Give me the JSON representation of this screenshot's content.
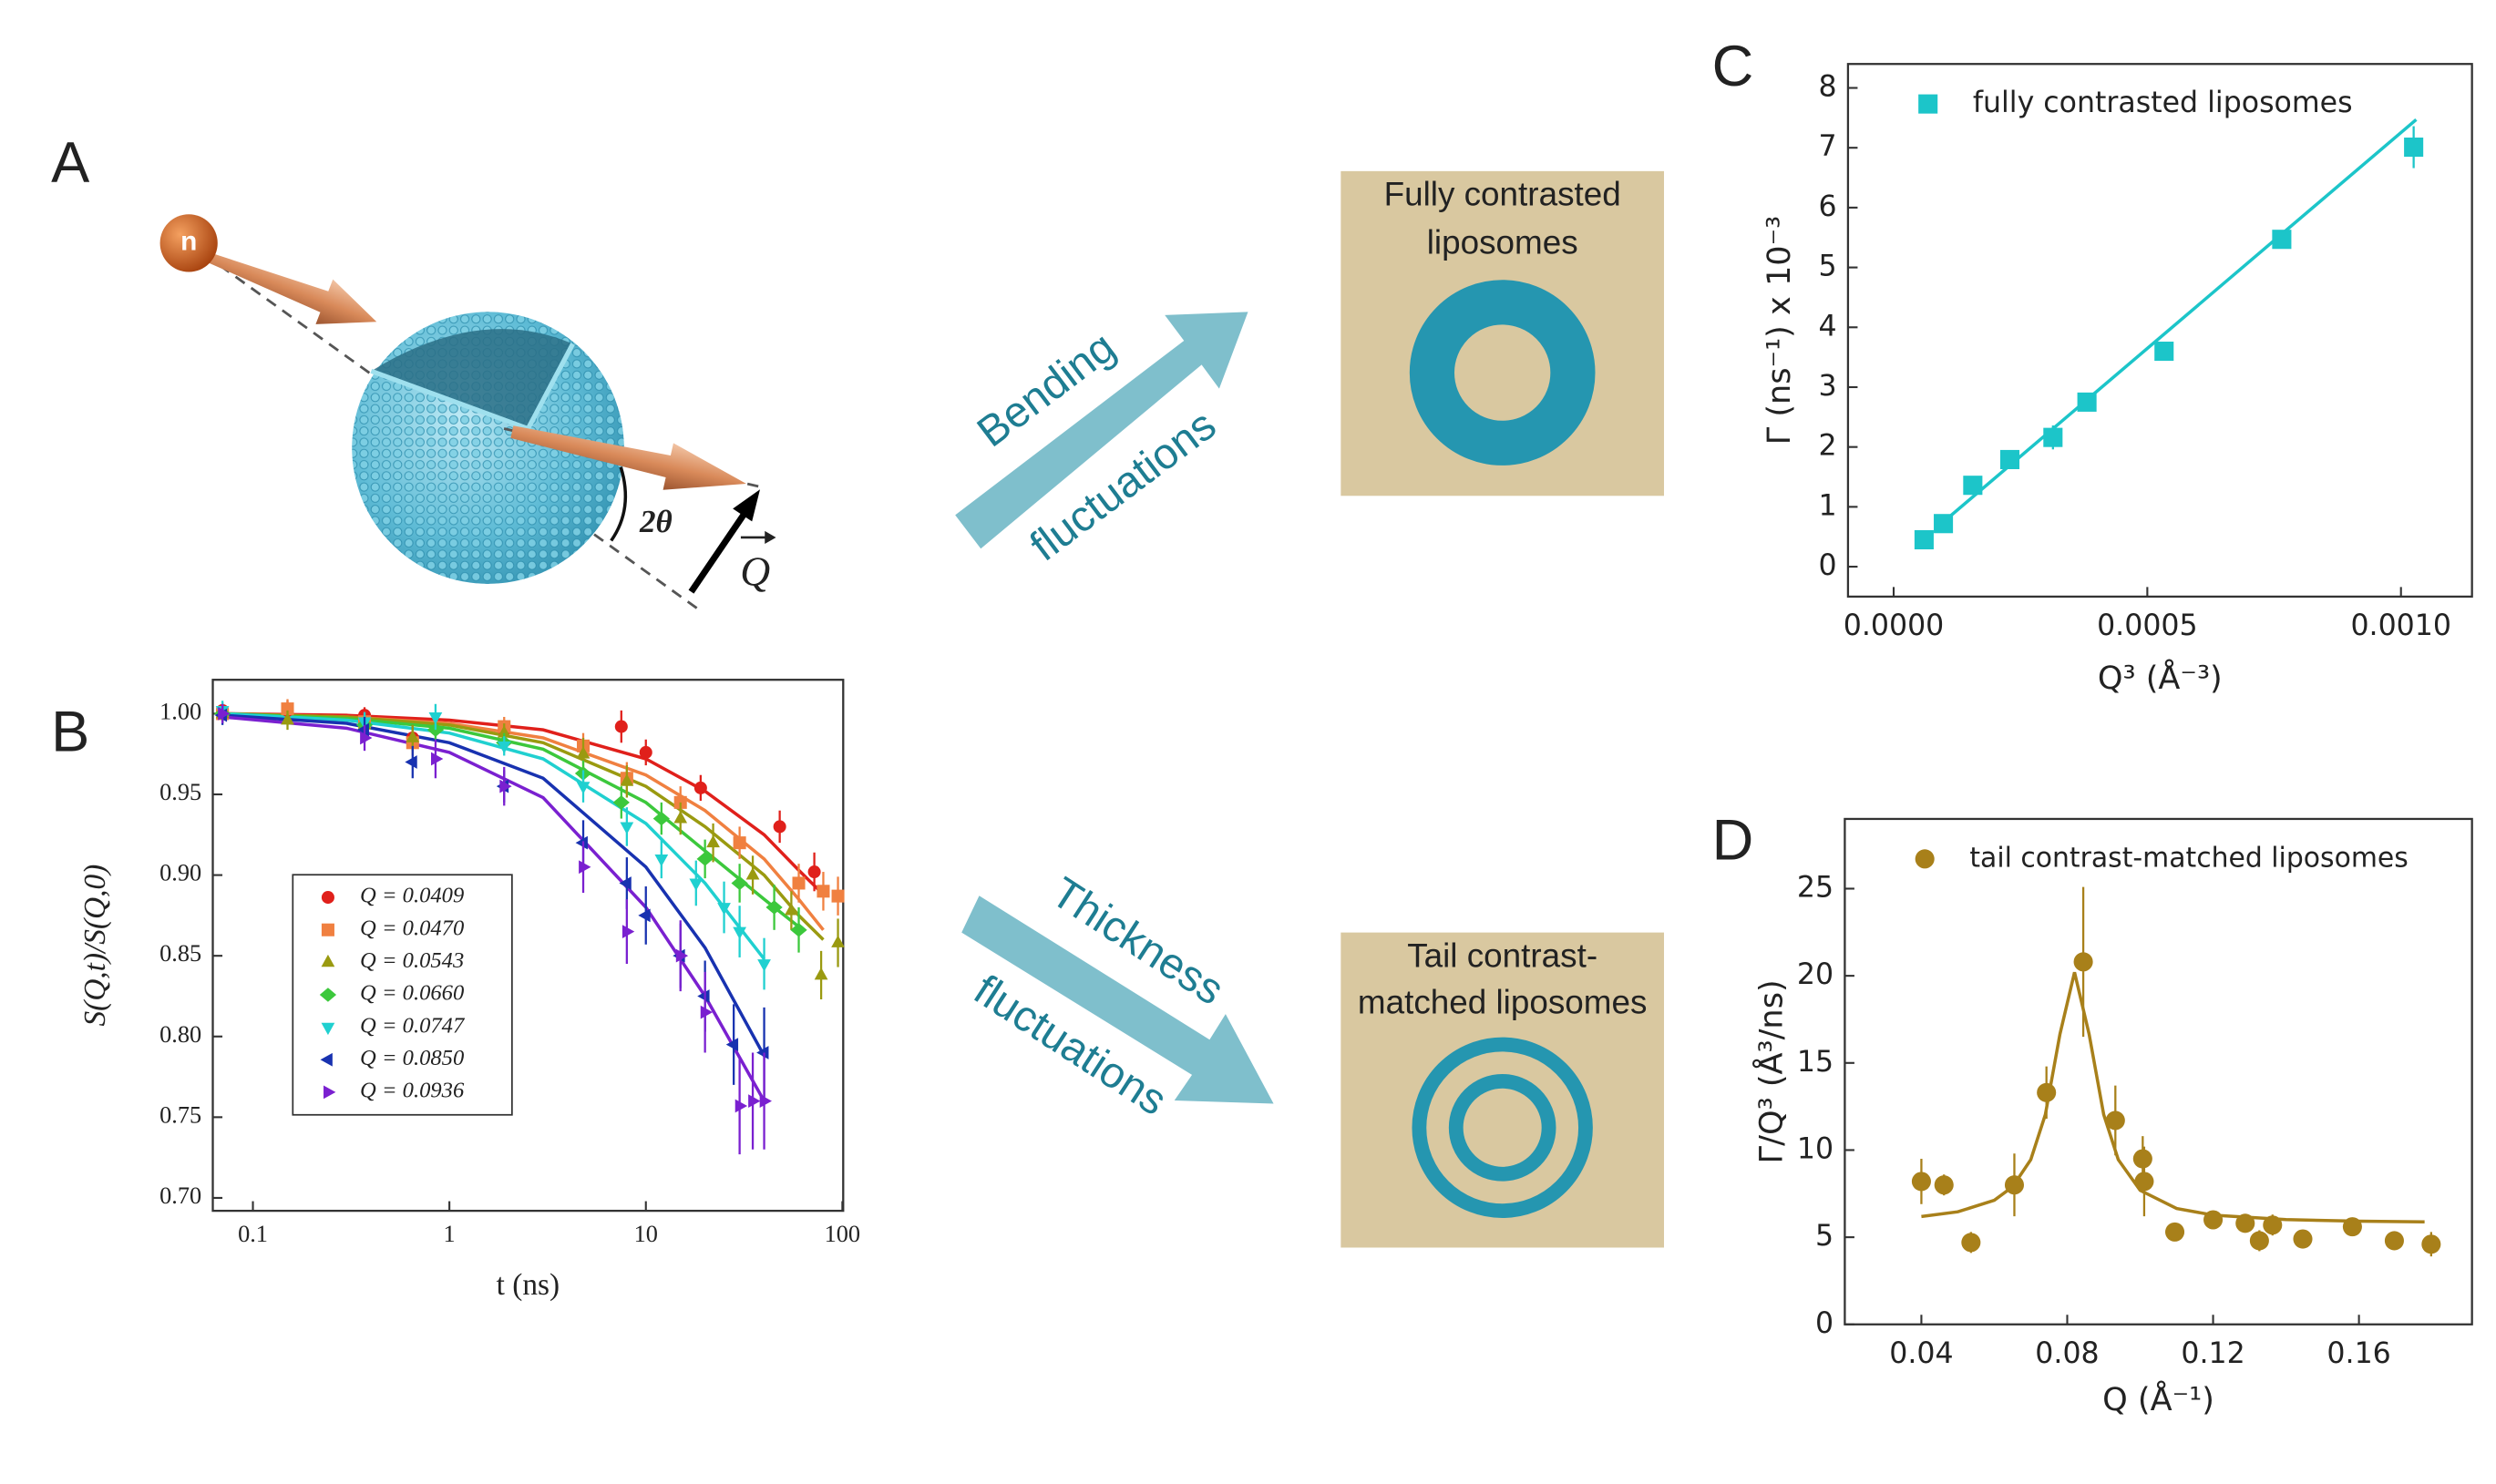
{
  "diagram": {
    "panel_labels": [
      "A",
      "B",
      "C",
      "D"
    ],
    "neutron": "n",
    "angle": "2θ",
    "vector": "Q",
    "arrows": [
      {
        "lines": [
          "Bending",
          "fluctuations"
        ]
      },
      {
        "lines": [
          "Thickness",
          "fluctuations"
        ]
      }
    ],
    "boxes": [
      {
        "lines": [
          "Fully contrasted",
          "liposomes"
        ]
      },
      {
        "lines": [
          "Tail contrast-",
          "matched liposomes"
        ]
      }
    ]
  },
  "chart_data": [
    {
      "type": "scatter",
      "xlabel": "t (ns)",
      "ylabel": "S(Q,t)/S(Q,0)",
      "xscale": "log",
      "xlim": [
        0.0625,
        101
      ],
      "xticks": [
        0.1,
        1,
        10,
        100
      ],
      "ylim": [
        0.692,
        1.021
      ],
      "yticks": [
        {
          "value": 0.7,
          "label": "0.70"
        },
        {
          "value": 0.75,
          "label": "0.75"
        },
        {
          "value": 0.8,
          "label": "0.80"
        },
        {
          "value": 0.85,
          "label": "0.85"
        },
        {
          "value": 0.9,
          "label": "0.90"
        },
        {
          "value": 0.95,
          "label": "0.95"
        },
        {
          "value": 1.0,
          "label": "1.00"
        }
      ],
      "legend": "lower left",
      "fit_x": [
        0.07,
        0.3,
        1,
        3,
        10,
        20,
        40,
        60,
        80
      ],
      "series": [
        {
          "name": "Q = 0.0409",
          "color": "#e0201b",
          "marker": "circle",
          "x": [
            0.07,
            0.15,
            0.37,
            0.65,
            1.9,
            7.5,
            10,
            19,
            48,
            72
          ],
          "values": [
            1.002,
            1.002,
            0.999,
            0.985,
            0.99,
            0.992,
            0.976,
            0.954,
            0.93,
            0.902
          ],
          "errors": [
            0.005,
            0.006,
            0.005,
            0.008,
            0.006,
            0.01,
            0.008,
            0.008,
            0.01,
            0.012
          ],
          "fit": [
            1.0,
            0.999,
            0.996,
            0.99,
            0.972,
            0.952,
            0.925,
            0.903,
            0.888
          ]
        },
        {
          "name": "Q = 0.0470",
          "color": "#f08040",
          "marker": "square",
          "x": [
            0.07,
            0.15,
            0.37,
            0.65,
            1.9,
            4.8,
            8,
            15,
            30,
            60,
            80,
            95
          ],
          "values": [
            1.0,
            1.003,
            0.995,
            0.982,
            0.992,
            0.98,
            0.96,
            0.945,
            0.92,
            0.895,
            0.89,
            0.887
          ],
          "errors": [
            0.005,
            0.006,
            0.006,
            0.008,
            0.006,
            0.008,
            0.01,
            0.01,
            0.01,
            0.012,
            0.012,
            0.012
          ],
          "fit": [
            1.0,
            0.998,
            0.994,
            0.985,
            0.962,
            0.94,
            0.91,
            0.885,
            0.866
          ]
        },
        {
          "name": "Q = 0.0543",
          "color": "#9a9a10",
          "marker": "triangle-up",
          "x": [
            0.07,
            0.15,
            0.37,
            0.65,
            1.9,
            4.8,
            8,
            15,
            22,
            35,
            55,
            78,
            95
          ],
          "values": [
            1.0,
            0.996,
            0.993,
            0.985,
            0.988,
            0.975,
            0.958,
            0.935,
            0.92,
            0.9,
            0.878,
            0.838,
            0.858
          ],
          "errors": [
            0.006,
            0.006,
            0.006,
            0.008,
            0.006,
            0.01,
            0.01,
            0.01,
            0.012,
            0.012,
            0.012,
            0.015,
            0.015
          ],
          "fit": [
            1.0,
            0.998,
            0.993,
            0.982,
            0.955,
            0.93,
            0.9,
            0.875,
            0.86
          ]
        },
        {
          "name": "Q = 0.0660",
          "color": "#3cc83c",
          "marker": "diamond",
          "x": [
            0.07,
            0.37,
            0.85,
            1.9,
            4.8,
            7.5,
            12,
            20,
            30,
            45,
            60
          ],
          "values": [
            1.0,
            0.993,
            0.99,
            0.982,
            0.963,
            0.945,
            0.935,
            0.91,
            0.895,
            0.88,
            0.866
          ],
          "errors": [
            0.006,
            0.006,
            0.006,
            0.006,
            0.008,
            0.01,
            0.01,
            0.012,
            0.012,
            0.014,
            0.014
          ],
          "fit": [
            1.0,
            0.997,
            0.991,
            0.978,
            0.945,
            0.915,
            0.885,
            0.868,
            null
          ]
        },
        {
          "name": "Q = 0.0747",
          "color": "#20d0d0",
          "marker": "triangle-down",
          "x": [
            0.07,
            0.37,
            0.85,
            1.9,
            4.8,
            8,
            12,
            18,
            25,
            30,
            40
          ],
          "values": [
            1.002,
            0.995,
            0.998,
            0.98,
            0.955,
            0.93,
            0.91,
            0.895,
            0.88,
            0.865,
            0.845
          ],
          "errors": [
            0.006,
            0.006,
            0.008,
            0.006,
            0.01,
            0.012,
            0.012,
            0.014,
            0.016,
            0.016,
            0.016
          ],
          "fit": [
            1.0,
            0.996,
            0.988,
            0.972,
            0.932,
            0.895,
            0.848,
            null,
            null
          ]
        },
        {
          "name": "Q = 0.0850",
          "color": "#1832b0",
          "marker": "triangle-left",
          "x": [
            0.07,
            0.37,
            0.65,
            1.9,
            4.8,
            8,
            10,
            15,
            20,
            28,
            40
          ],
          "values": [
            0.999,
            0.99,
            0.97,
            0.955,
            0.92,
            0.895,
            0.875,
            0.85,
            0.825,
            0.795,
            0.79
          ],
          "errors": [
            0.006,
            0.008,
            0.01,
            0.01,
            0.014,
            0.016,
            0.018,
            0.02,
            0.022,
            0.025,
            0.028
          ],
          "fit": [
            0.999,
            0.994,
            0.982,
            0.96,
            0.905,
            0.855,
            0.788,
            null,
            null
          ]
        },
        {
          "name": "Q = 0.0936",
          "color": "#7a20d0",
          "marker": "triangle-right",
          "x": [
            0.07,
            0.37,
            0.85,
            1.9,
            4.8,
            8,
            15,
            20,
            30,
            35,
            40
          ],
          "values": [
            1.0,
            0.985,
            0.972,
            0.955,
            0.905,
            0.865,
            0.85,
            0.815,
            0.757,
            0.76,
            0.76
          ],
          "errors": [
            0.006,
            0.008,
            0.012,
            0.012,
            0.016,
            0.02,
            0.022,
            0.025,
            0.03,
            0.03,
            0.03
          ],
          "fit": [
            0.998,
            0.991,
            0.976,
            0.948,
            0.88,
            0.825,
            0.76,
            null,
            null
          ]
        }
      ]
    },
    {
      "type": "scatter",
      "xlabel": "Q³ (Å⁻³)",
      "ylabel": "Γ (ns⁻¹) x 10⁻³",
      "xlim": [
        -9e-05,
        0.00114
      ],
      "xticks": [
        {
          "value": 0,
          "label": "0.0000"
        },
        {
          "value": 0.0005,
          "label": "0.0005"
        },
        {
          "value": 0.001,
          "label": "0.0010"
        }
      ],
      "ylim": [
        -0.5,
        8.4
      ],
      "yticks": [
        0,
        1,
        2,
        3,
        4,
        5,
        6,
        7,
        8
      ],
      "legend": "upper left",
      "series": [
        {
          "name": "fully contrasted liposomes",
          "color": "#1cc5c9",
          "marker": "square",
          "x": [
            6e-05,
            9.8e-05,
            0.000156,
            0.000229,
            0.000314,
            0.000381,
            0.000533,
            0.000765,
            0.001025
          ],
          "values": [
            0.45,
            0.72,
            1.36,
            1.79,
            2.16,
            2.75,
            3.6,
            5.47,
            7.01
          ],
          "errors": [
            0.08,
            0.08,
            0.1,
            0.1,
            0.2,
            0.12,
            0.12,
            0.12,
            0.35
          ]
        }
      ],
      "fit": {
        "x": [
          9e-05,
          0.00103
        ],
        "values": [
          0.69,
          7.47
        ]
      }
    },
    {
      "type": "scatter",
      "xlabel": "Q (Å⁻¹)",
      "ylabel": "Γ/Q³ (Å³/ns)",
      "xlim": [
        0.019,
        0.191
      ],
      "xticks": [
        0.04,
        0.08,
        0.12,
        0.16
      ],
      "ylim": [
        0,
        29
      ],
      "yticks": [
        0,
        5,
        10,
        15,
        20,
        25
      ],
      "legend": "upper left",
      "series": [
        {
          "name": "tail contrast-matched liposomes",
          "color": "#a8801a",
          "marker": "circle",
          "x": [
            0.04,
            0.0462,
            0.0536,
            0.0655,
            0.0743,
            0.0844,
            0.0932,
            0.1007,
            0.1011,
            0.1095,
            0.12,
            0.1288,
            0.1327,
            0.1363,
            0.1446,
            0.1582,
            0.1697,
            0.1798
          ],
          "values": [
            8.2,
            8.0,
            4.7,
            8.0,
            13.3,
            20.8,
            11.7,
            9.5,
            8.2,
            5.3,
            6.0,
            5.8,
            4.8,
            5.7,
            4.9,
            5.6,
            4.8,
            4.6
          ],
          "errors": [
            1.3,
            0.6,
            0.6,
            1.8,
            1.5,
            4.3,
            2.0,
            1.3,
            2.0,
            0.4,
            0.5,
            0.5,
            0.6,
            0.6,
            0.4,
            0.4,
            0.5,
            0.7
          ]
        }
      ],
      "fit": {
        "x": [
          0.04,
          0.05,
          0.06,
          0.065,
          0.07,
          0.074,
          0.078,
          0.082,
          0.086,
          0.09,
          0.094,
          0.1,
          0.11,
          0.12,
          0.14,
          0.16,
          0.178
        ],
        "values": [
          6.19,
          6.46,
          7.12,
          7.89,
          9.45,
          12.04,
          16.65,
          20.2,
          16.65,
          12.04,
          9.45,
          7.69,
          6.65,
          6.27,
          6.01,
          5.92,
          5.88
        ]
      }
    }
  ]
}
